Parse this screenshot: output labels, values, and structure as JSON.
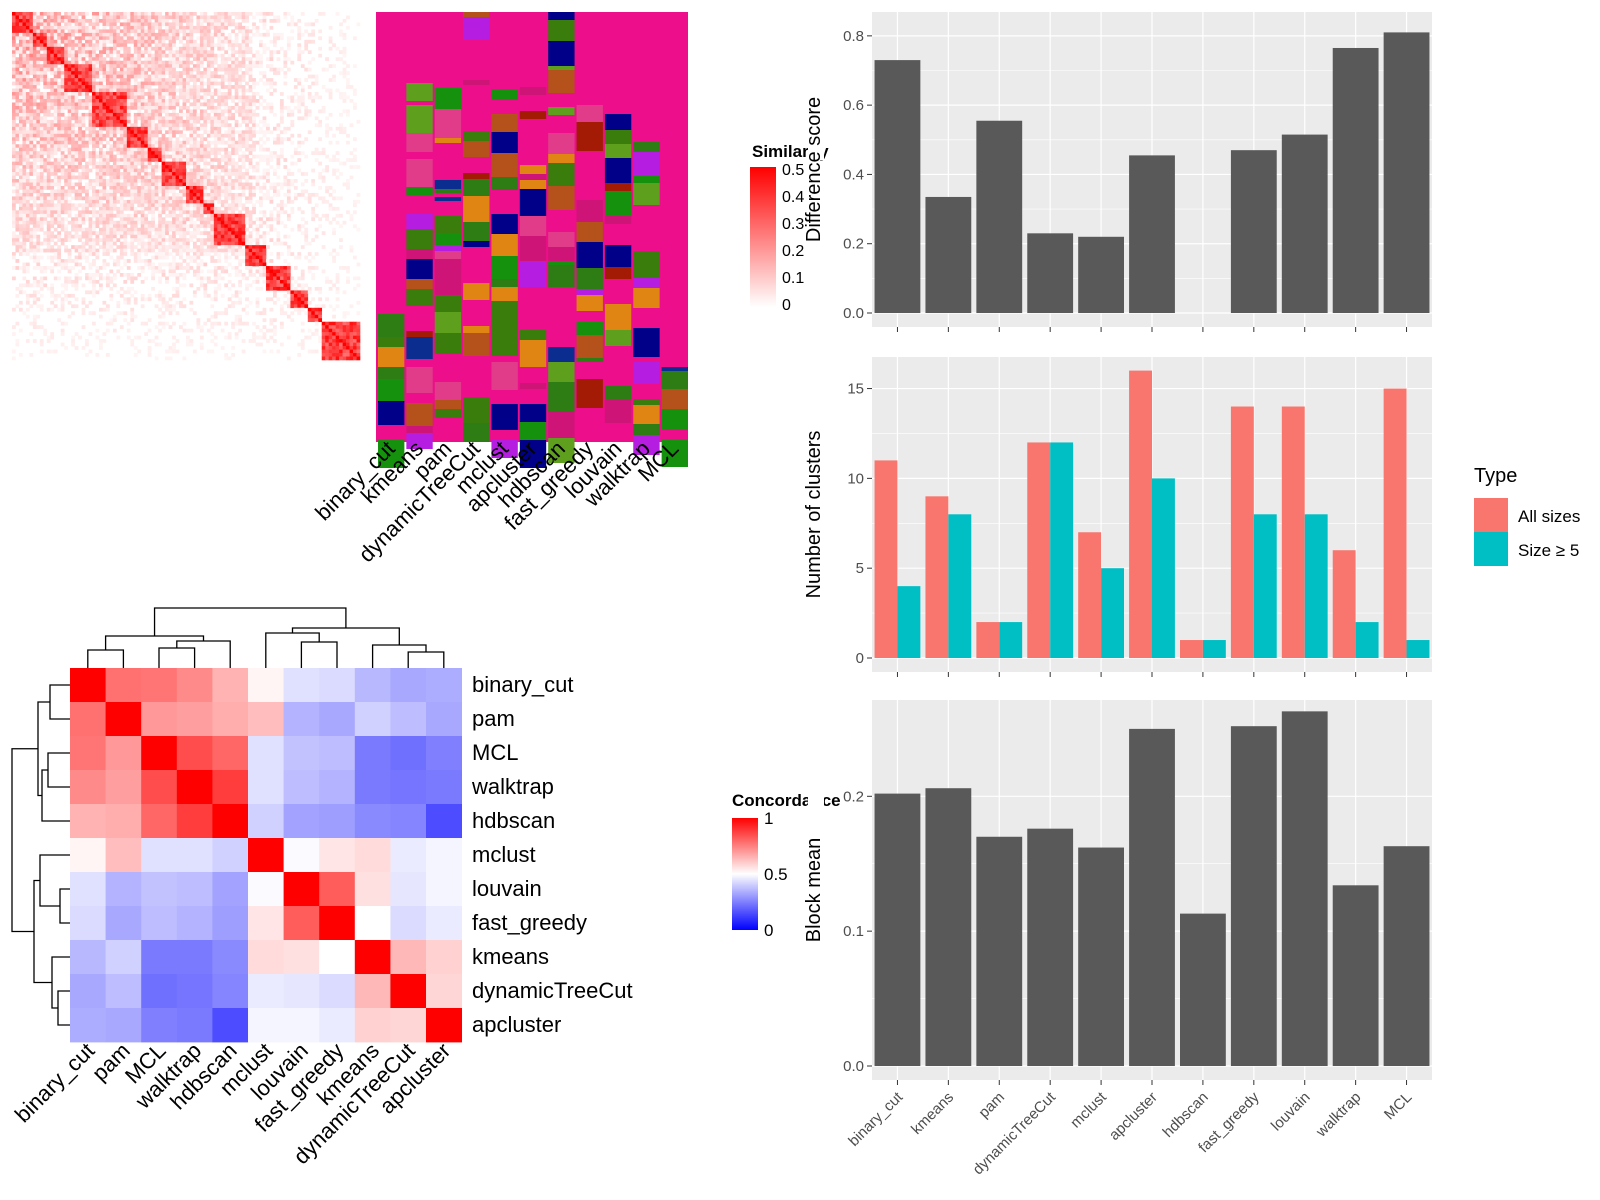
{
  "colors": {
    "bar_fill": "#595959",
    "panel_bg": "#ebebeb",
    "grid": "#ffffff",
    "all_sizes": "#f8766d",
    "size5": "#00bfc4",
    "sim_high": "#ff0000",
    "conc_high": "#ff0000",
    "conc_mid": "#ffffff",
    "conc_low": "#0000ff"
  },
  "heatmap_similarity": {
    "legend_title": "Similarity",
    "legend_ticks": [
      "0.5",
      "0.4",
      "0.3",
      "0.2",
      "0.1",
      "0"
    ],
    "n_terms": 100,
    "block_sizes": [
      6,
      4,
      5,
      8,
      10,
      6,
      4,
      7,
      5,
      3,
      9,
      6,
      7,
      5,
      4,
      11
    ]
  },
  "membership_panel": {
    "methods": [
      "binary_cut",
      "kmeans",
      "pam",
      "dynamicTreeCut",
      "mclust",
      "apcluster",
      "hdbscan",
      "fast_greedy",
      "louvain",
      "walktrap",
      "MCL"
    ]
  },
  "concordance": {
    "legend_title": "Concordance",
    "legend_ticks": [
      "1",
      "0.5",
      "0"
    ],
    "row_labels": [
      "binary_cut",
      "pam",
      "MCL",
      "walktrap",
      "hdbscan",
      "mclust",
      "louvain",
      "fast_greedy",
      "kmeans",
      "dynamicTreeCut",
      "apcluster"
    ],
    "col_labels": [
      "binary_cut",
      "pam",
      "MCL",
      "walktrap",
      "hdbscan",
      "mclust",
      "louvain",
      "fast_greedy",
      "kmeans",
      "dynamicTreeCut",
      "apcluster"
    ],
    "matrix": [
      [
        1.0,
        0.78,
        0.77,
        0.73,
        0.65,
        0.52,
        0.44,
        0.43,
        0.36,
        0.33,
        0.34
      ],
      [
        0.78,
        1.0,
        0.7,
        0.69,
        0.66,
        0.63,
        0.35,
        0.33,
        0.41,
        0.37,
        0.33
      ],
      [
        0.77,
        0.7,
        1.0,
        0.85,
        0.8,
        0.44,
        0.38,
        0.37,
        0.24,
        0.22,
        0.25
      ],
      [
        0.73,
        0.69,
        0.85,
        1.0,
        0.88,
        0.44,
        0.37,
        0.35,
        0.24,
        0.23,
        0.24
      ],
      [
        0.65,
        0.66,
        0.8,
        0.88,
        1.0,
        0.41,
        0.32,
        0.31,
        0.27,
        0.26,
        0.15
      ],
      [
        0.52,
        0.63,
        0.44,
        0.44,
        0.41,
        1.0,
        0.49,
        0.55,
        0.57,
        0.46,
        0.48
      ],
      [
        0.44,
        0.35,
        0.38,
        0.37,
        0.32,
        0.49,
        1.0,
        0.82,
        0.56,
        0.45,
        0.48
      ],
      [
        0.43,
        0.33,
        0.37,
        0.35,
        0.31,
        0.55,
        0.82,
        1.0,
        0.5,
        0.43,
        0.46
      ],
      [
        0.36,
        0.41,
        0.24,
        0.24,
        0.27,
        0.57,
        0.56,
        0.5,
        1.0,
        0.64,
        0.59
      ],
      [
        0.33,
        0.37,
        0.22,
        0.23,
        0.26,
        0.46,
        0.45,
        0.43,
        0.64,
        1.0,
        0.58
      ],
      [
        0.34,
        0.33,
        0.25,
        0.24,
        0.15,
        0.48,
        0.48,
        0.46,
        0.59,
        0.58,
        1.0
      ]
    ]
  },
  "chart_data": [
    {
      "type": "bar",
      "ylabel": "Difference score",
      "categories": [
        "binary_cut",
        "kmeans",
        "pam",
        "dynamicTreeCut",
        "mclust",
        "apcluster",
        "hdbscan",
        "fast_greedy",
        "louvain",
        "walktrap",
        "MCL"
      ],
      "values": [
        0.73,
        0.335,
        0.555,
        0.23,
        0.22,
        0.455,
        0,
        0.47,
        0.515,
        0.765,
        0.81
      ],
      "ylim": [
        0,
        0.84
      ],
      "yticks": [
        0.0,
        0.2,
        0.4,
        0.6,
        0.8
      ],
      "ytick_labels": [
        "0.0",
        "0.2",
        "0.4",
        "0.6",
        "0.8"
      ]
    },
    {
      "type": "bar",
      "ylabel": "Number of clusters",
      "categories": [
        "binary_cut",
        "kmeans",
        "pam",
        "dynamicTreeCut",
        "mclust",
        "apcluster",
        "hdbscan",
        "fast_greedy",
        "louvain",
        "walktrap",
        "MCL"
      ],
      "series": [
        {
          "name": "All sizes",
          "values": [
            11,
            9,
            2,
            12,
            7,
            16,
            1,
            14,
            14,
            6,
            15
          ]
        },
        {
          "name": "Size ≥ 5",
          "values": [
            4,
            8,
            2,
            12,
            5,
            10,
            1,
            8,
            8,
            2,
            1
          ]
        }
      ],
      "ylim": [
        0,
        16.2
      ],
      "yticks": [
        0,
        5,
        10,
        15
      ],
      "ytick_labels": [
        "0",
        "5",
        "10",
        "15"
      ],
      "legend_title": "Type",
      "legend_position": "right"
    },
    {
      "type": "bar",
      "ylabel": "Block mean",
      "categories": [
        "binary_cut",
        "kmeans",
        "pam",
        "dynamicTreeCut",
        "mclust",
        "apcluster",
        "hdbscan",
        "fast_greedy",
        "louvain",
        "walktrap",
        "MCL"
      ],
      "values": [
        0.202,
        0.206,
        0.17,
        0.176,
        0.162,
        0.25,
        0.113,
        0.252,
        0.263,
        0.134,
        0.163
      ],
      "ylim": [
        0,
        0.264
      ],
      "yticks": [
        0.0,
        0.1,
        0.2
      ],
      "ytick_labels": [
        "0.0",
        "0.1",
        "0.2"
      ]
    }
  ]
}
